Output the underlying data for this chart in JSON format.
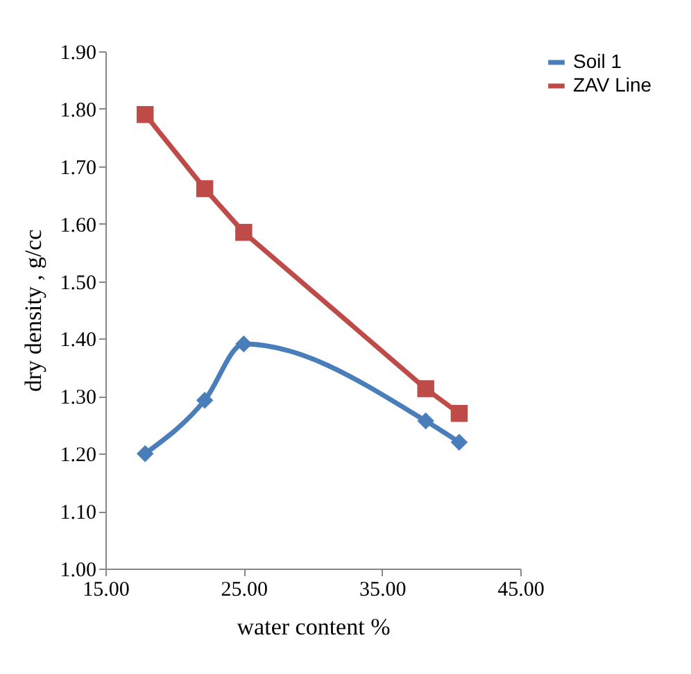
{
  "chart_data": {
    "type": "line",
    "xlabel": "water content %",
    "ylabel": "dry density , g/cc",
    "xlim": [
      15,
      45
    ],
    "xticks": [
      {
        "value": 15,
        "label": "15.00"
      },
      {
        "value": 25,
        "label": "25.00"
      },
      {
        "value": 35,
        "label": "35.00"
      },
      {
        "value": 45,
        "label": "45.00"
      }
    ],
    "ylim": [
      1.0,
      1.9
    ],
    "yticks": [
      {
        "value": 1.0,
        "label": "1.00"
      },
      {
        "value": 1.1,
        "label": "1.10"
      },
      {
        "value": 1.2,
        "label": "1.20"
      },
      {
        "value": 1.3,
        "label": "1.30"
      },
      {
        "value": 1.4,
        "label": "1.40"
      },
      {
        "value": 1.5,
        "label": "1.50"
      },
      {
        "value": 1.6,
        "label": "1.60"
      },
      {
        "value": 1.7,
        "label": "1.70"
      },
      {
        "value": 1.8,
        "label": "1.80"
      },
      {
        "value": 1.9,
        "label": "1.90"
      }
    ],
    "grid": false,
    "legend": "right",
    "series": [
      {
        "name": "Soil 1",
        "color": "#4a7ebb",
        "marker": "diamond",
        "x": [
          17.87,
          22.18,
          25.0,
          38.16,
          40.58
        ],
        "values": [
          1.2,
          1.293,
          1.391,
          1.257,
          1.22
        ]
      },
      {
        "name": "ZAV Line",
        "color": "#be4b48",
        "marker": "square",
        "x": [
          17.87,
          22.18,
          25.0,
          38.16,
          40.58
        ],
        "values": [
          1.79,
          1.661,
          1.585,
          1.313,
          1.27
        ]
      }
    ]
  }
}
